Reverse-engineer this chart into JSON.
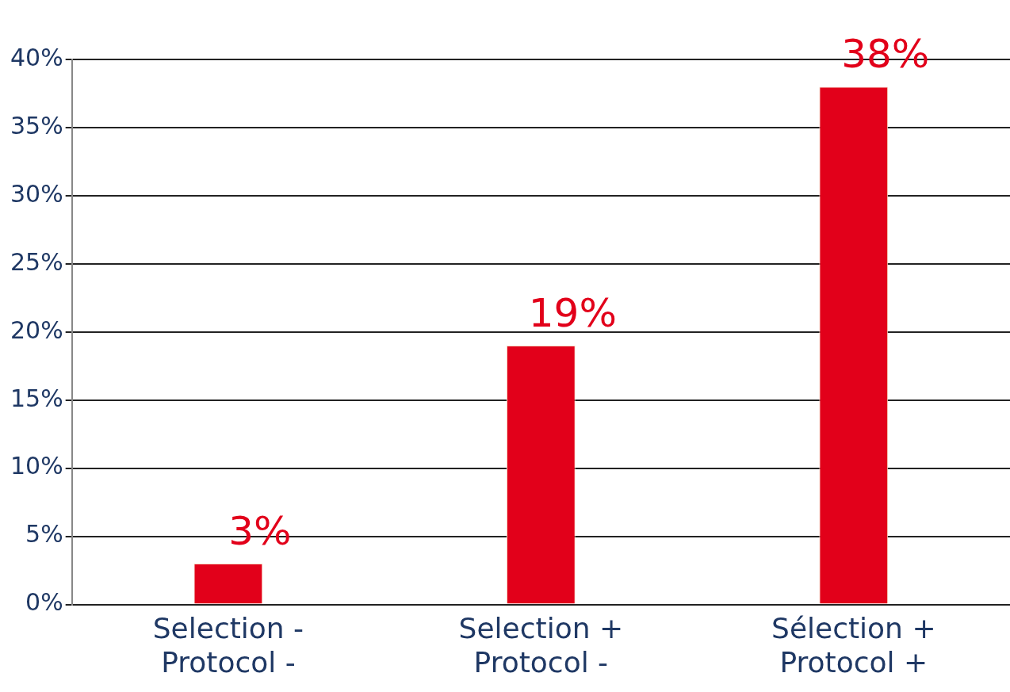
{
  "chart_data": {
    "type": "bar",
    "categories": [
      "Selection -\nProtocol -",
      "Selection +\nProtocol -",
      "Sélection +\nProtocol +"
    ],
    "values": [
      3,
      19,
      38
    ],
    "color": "#e2001a",
    "value_labels": [
      "3%",
      "19%",
      "38%"
    ],
    "ylim": [
      0,
      40
    ],
    "yticks": [
      {
        "value": 0,
        "label": "0%"
      },
      {
        "value": 5,
        "label": "5%"
      },
      {
        "value": 10,
        "label": "10%"
      },
      {
        "value": 15,
        "label": "15%"
      },
      {
        "value": 20,
        "label": "20%"
      },
      {
        "value": 25,
        "label": "25%"
      },
      {
        "value": 30,
        "label": "30%"
      },
      {
        "value": 35,
        "label": "35%"
      },
      {
        "value": 40,
        "label": "40%"
      }
    ],
    "grid": "y",
    "legend": false
  }
}
